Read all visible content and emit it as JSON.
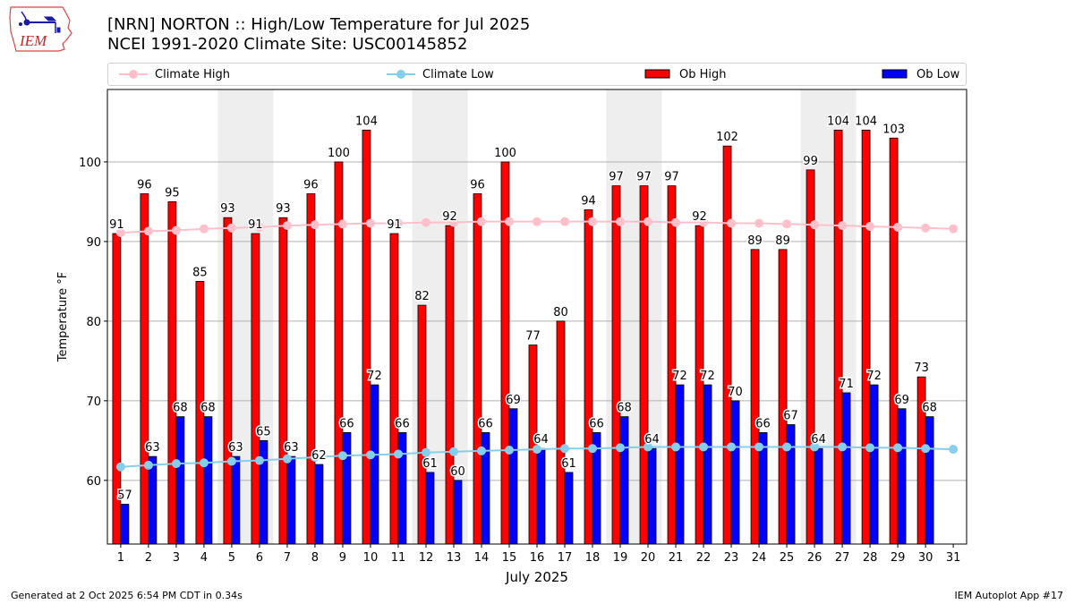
{
  "header": {
    "logo_text": "IEM",
    "title_line1": "[NRN] NORTON :: High/Low Temperature for Jul 2025",
    "title_line2": "NCEI 1991-2020 Climate Site: USC00145852"
  },
  "legend": {
    "items": [
      {
        "label": "Climate High",
        "color": "#ffc0cb",
        "kind": "line-marker"
      },
      {
        "label": "Climate Low",
        "color": "#87ceeb",
        "kind": "line-marker"
      },
      {
        "label": "Ob High",
        "color": "#ff0000",
        "kind": "bar"
      },
      {
        "label": "Ob Low",
        "color": "#0000ff",
        "kind": "bar"
      }
    ]
  },
  "footer": {
    "generated": "Generated at 2 Oct 2025 6:54 PM CDT in 0.34s",
    "app": "IEM Autoplot App #17"
  },
  "chart_data": {
    "type": "bar",
    "title": "[NRN] NORTON :: High/Low Temperature for Jul 2025",
    "subtitle": "NCEI 1991-2020 Climate Site: USC00145852",
    "xlabel": "July 2025",
    "ylabel": "Temperature °F",
    "x": [
      1,
      2,
      3,
      4,
      5,
      6,
      7,
      8,
      9,
      10,
      11,
      12,
      13,
      14,
      15,
      16,
      17,
      18,
      19,
      20,
      21,
      22,
      23,
      24,
      25,
      26,
      27,
      28,
      29,
      30,
      31
    ],
    "xlim": [
      0.52,
      31.48
    ],
    "ylim": [
      52,
      109.1
    ],
    "yticks": [
      60,
      70,
      80,
      90,
      100
    ],
    "grid": "horizontal",
    "legend_position": "top",
    "weekend_shading": [
      [
        5,
        6
      ],
      [
        12,
        13
      ],
      [
        19,
        20
      ],
      [
        26,
        27
      ]
    ],
    "series": [
      {
        "name": "Ob High",
        "type": "bar",
        "color": "#ff0000",
        "values": [
          91,
          96,
          95,
          85,
          93,
          91,
          93,
          96,
          100,
          104,
          91,
          82,
          92,
          96,
          100,
          77,
          80,
          94,
          97,
          97,
          97,
          92,
          102,
          89,
          89,
          99,
          104,
          104,
          103,
          73,
          null
        ],
        "labels": true
      },
      {
        "name": "Ob Low",
        "type": "bar",
        "color": "#0000ff",
        "values": [
          57,
          63,
          68,
          68,
          63,
          65,
          63,
          62,
          66,
          72,
          66,
          61,
          60,
          66,
          69,
          64,
          61,
          66,
          68,
          64,
          72,
          72,
          70,
          66,
          67,
          64,
          71,
          72,
          69,
          68,
          null
        ],
        "labels": true
      },
      {
        "name": "Climate High",
        "type": "line",
        "color": "#ffc0cb",
        "values": [
          91.1,
          91.3,
          91.4,
          91.6,
          91.7,
          91.8,
          92.0,
          92.1,
          92.2,
          92.3,
          92.3,
          92.4,
          92.4,
          92.5,
          92.5,
          92.5,
          92.5,
          92.5,
          92.5,
          92.5,
          92.4,
          92.4,
          92.3,
          92.3,
          92.2,
          92.1,
          92.0,
          91.9,
          91.8,
          91.7,
          91.6
        ]
      },
      {
        "name": "Climate Low",
        "type": "line",
        "color": "#87ceeb",
        "values": [
          61.7,
          61.9,
          62.1,
          62.2,
          62.4,
          62.5,
          62.7,
          62.9,
          63.1,
          63.2,
          63.3,
          63.5,
          63.6,
          63.7,
          63.8,
          63.9,
          64.0,
          64.0,
          64.1,
          64.2,
          64.2,
          64.2,
          64.2,
          64.2,
          64.2,
          64.2,
          64.2,
          64.1,
          64.1,
          64.0,
          63.9
        ]
      }
    ]
  }
}
